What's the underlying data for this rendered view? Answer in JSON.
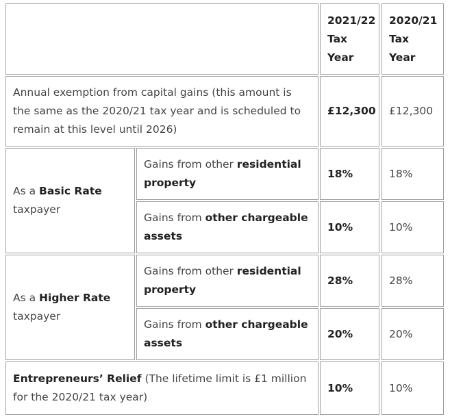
{
  "headers": {
    "col_2021": [
      "2021/22",
      "Tax",
      "Year"
    ],
    "col_2020": [
      "2020/21",
      "Tax",
      "Year"
    ]
  },
  "exemption": {
    "label": "Annual exemption from capital gains (this amount is the same as the 2020/21 tax year and is scheduled to remain at this level until 2026)",
    "v2021": "£12,300",
    "v2020": "£12,300"
  },
  "basic": {
    "label_prefix": "As a ",
    "label_bold": "Basic Rate",
    "label_suffix": "taxpayer",
    "residential": {
      "pre": "Gains from other ",
      "bold": "residential property",
      "v2021": "18%",
      "v2020": "18%"
    },
    "other": {
      "pre": "Gains from ",
      "bold": "other chargeable assets",
      "v2021": "10%",
      "v2020": "10%"
    }
  },
  "higher": {
    "label_prefix": "As a ",
    "label_bold": "Higher Rate",
    "label_suffix": "taxpayer",
    "residential": {
      "pre": "Gains from other ",
      "bold": "residential property",
      "v2021": "28%",
      "v2020": "28%"
    },
    "other": {
      "pre": "Gains from ",
      "bold": "other chargeable assets",
      "v2021": "20%",
      "v2020": "20%"
    }
  },
  "entrepreneurs": {
    "bold": "Entrepreneurs’ Relief",
    "rest": " (The lifetime limit is £1 million for the 2020/21 tax year)",
    "v2021": "10%",
    "v2020": "10%"
  }
}
